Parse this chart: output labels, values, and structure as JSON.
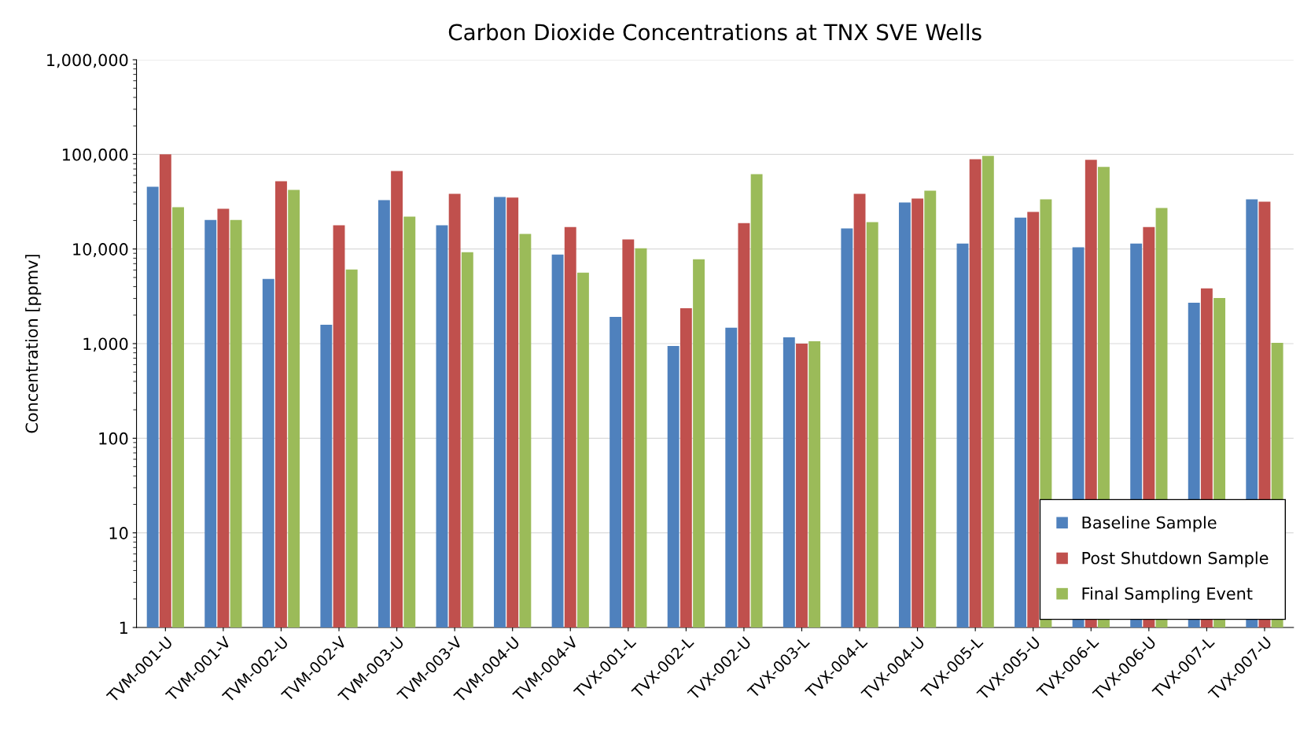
{
  "chart_data": {
    "type": "bar",
    "title": "Carbon Dioxide Concentrations at TNX SVE Wells",
    "ylabel": "Concentration [ppmv]",
    "categories": [
      "TVM-001-U",
      "TVM-001-V",
      "TVM-002-U",
      "TVM-002-V",
      "TVM-003-U",
      "TVM-003-V",
      "TVM-004-U",
      "TVM-004-V",
      "TVX-001-L",
      "TVX-002-L",
      "TVX-002-U",
      "TVX-003-L",
      "TVX-004-L",
      "TVX-004-U",
      "TVX-005-L",
      "TVX-005-U",
      "TVX-006-L",
      "TVX-006-U",
      "TVX-007-L",
      "TVX-007-U"
    ],
    "series": [
      {
        "name": "Baseline Sample",
        "color": "#4f81bd",
        "values": [
          45500,
          20300,
          4820,
          1585,
          32900,
          17800,
          35500,
          8750,
          1920,
          944,
          1470,
          1166,
          16500,
          31000,
          11400,
          21500,
          10400,
          11400,
          2710,
          33500
        ]
      },
      {
        "name": "Post Shutdown Sample",
        "color": "#c0504d",
        "values": [
          100000,
          26600,
          52100,
          17800,
          66800,
          38300,
          35000,
          17100,
          12600,
          2370,
          18800,
          1000,
          38300,
          34200,
          89000,
          24600,
          87500,
          17100,
          3830,
          31600
        ]
      },
      {
        "name": "Final Sampling Event",
        "color": "#9bbb59",
        "values": [
          27700,
          20300,
          42200,
          6070,
          22000,
          9260,
          14400,
          5620,
          10200,
          7800,
          61900,
          1060,
          19200,
          41400,
          96200,
          33500,
          73600,
          27100,
          3040,
          1020
        ]
      }
    ],
    "log": "y",
    "ylim": [
      1,
      1000000
    ],
    "yticks": [
      1,
      10,
      100,
      {
        "value": 1000,
        "label": "1,000"
      },
      {
        "value": 10000,
        "label": "10,000"
      },
      {
        "value": 100000,
        "label": "100,000"
      },
      {
        "value": 1000000,
        "label": "1,000,000"
      }
    ],
    "grid": "y",
    "legend": "bottom right"
  }
}
